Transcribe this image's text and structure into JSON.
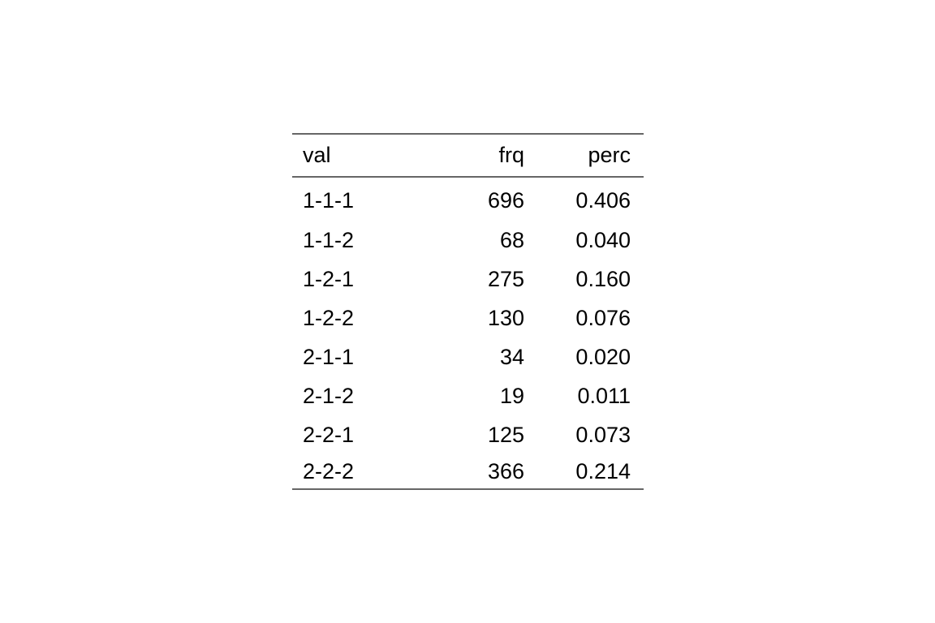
{
  "chart_data": {
    "type": "table",
    "columns": [
      "val",
      "frq",
      "perc"
    ],
    "rows": [
      [
        "1-1-1",
        "696",
        "0.406"
      ],
      [
        "1-1-2",
        "68",
        "0.040"
      ],
      [
        "1-2-1",
        "275",
        "0.160"
      ],
      [
        "1-2-2",
        "130",
        "0.076"
      ],
      [
        "2-1-1",
        "34",
        "0.020"
      ],
      [
        "2-1-2",
        "19",
        "0.011"
      ],
      [
        "2-2-1",
        "125",
        "0.073"
      ],
      [
        "2-2-2",
        "366",
        "0.214"
      ]
    ]
  }
}
